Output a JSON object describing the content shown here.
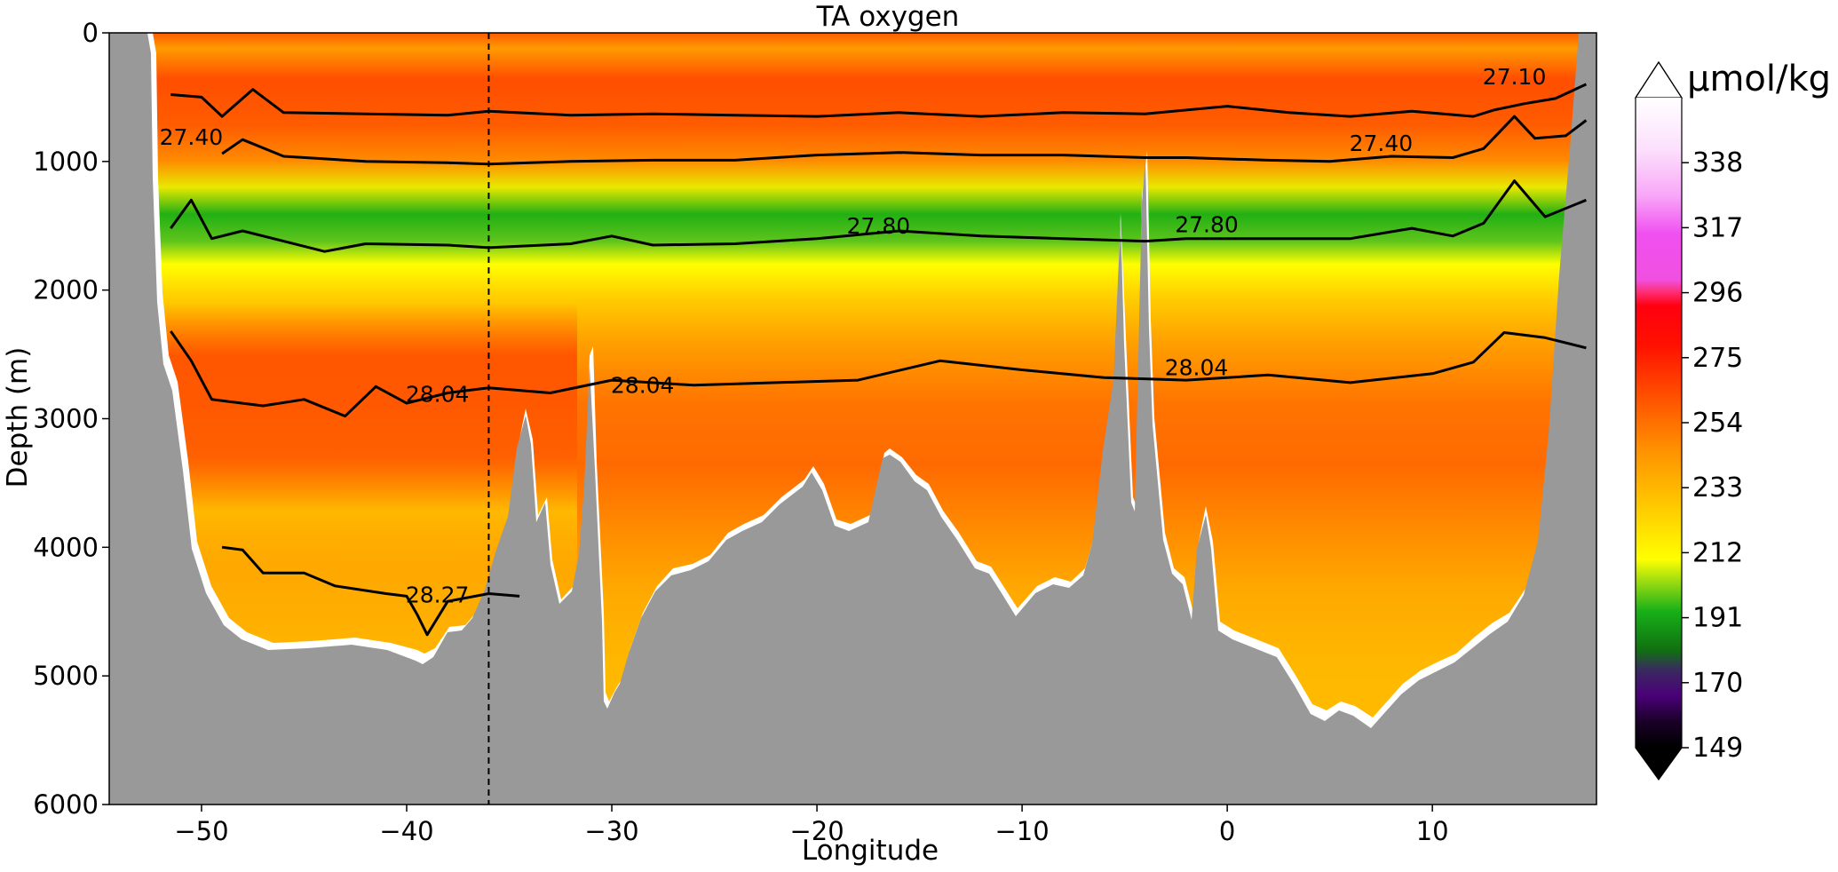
{
  "chart_data": {
    "type": "contour-section",
    "title": "TA oxygen",
    "xlabel": "Longitude",
    "ylabel": "Depth (m)",
    "xlim": [
      -54.5,
      18
    ],
    "ylim": [
      6000,
      0
    ],
    "x_ticks": [
      -50,
      -40,
      -30,
      -20,
      -10,
      0,
      10
    ],
    "x_tick_labels": [
      "−50",
      "−40",
      "−30",
      "−20",
      "−10",
      "0",
      "10"
    ],
    "y_ticks": [
      0,
      1000,
      2000,
      3000,
      4000,
      5000,
      6000
    ],
    "y_tick_labels": [
      "0",
      "1000",
      "2000",
      "3000",
      "4000",
      "5000",
      "6000"
    ],
    "reference_line_longitude": -36,
    "colorbar": {
      "unit": "µmol/kg",
      "ticks": [
        149,
        170,
        191,
        212,
        233,
        254,
        275,
        296,
        317,
        338
      ],
      "tick_labels": [
        "149",
        "170",
        "191",
        "212",
        "233",
        "254",
        "275",
        "296",
        "317",
        "338"
      ],
      "extend": "both"
    },
    "isopycnals": [
      {
        "label": "27.10",
        "label_lon": 14,
        "label_depth": 400,
        "points": [
          [
            -51.5,
            480
          ],
          [
            -50,
            500
          ],
          [
            -49,
            650
          ],
          [
            -47.5,
            440
          ],
          [
            -46,
            620
          ],
          [
            -42,
            630
          ],
          [
            -38,
            640
          ],
          [
            -36,
            610
          ],
          [
            -32,
            640
          ],
          [
            -28,
            630
          ],
          [
            -24,
            640
          ],
          [
            -20,
            650
          ],
          [
            -16,
            620
          ],
          [
            -12,
            650
          ],
          [
            -8,
            620
          ],
          [
            -4,
            630
          ],
          [
            0,
            570
          ],
          [
            3,
            620
          ],
          [
            6,
            650
          ],
          [
            9,
            610
          ],
          [
            12,
            650
          ],
          [
            13,
            600
          ],
          [
            14.5,
            550
          ],
          [
            16,
            510
          ],
          [
            17.5,
            400
          ]
        ]
      },
      {
        "label": "27.40",
        "label_lon": -50.5,
        "label_depth": 870,
        "points": [
          [
            -49,
            940
          ],
          [
            -48,
            830
          ],
          [
            -46,
            960
          ],
          [
            -42,
            1000
          ],
          [
            -38,
            1010
          ],
          [
            -36,
            1020
          ],
          [
            -32,
            1000
          ],
          [
            -28,
            990
          ],
          [
            -24,
            990
          ],
          [
            -20,
            950
          ],
          [
            -16,
            930
          ],
          [
            -12,
            950
          ],
          [
            -8,
            950
          ],
          [
            -4,
            970
          ],
          [
            -2,
            970
          ],
          [
            2,
            990
          ],
          [
            5,
            1000
          ],
          [
            8,
            960
          ],
          [
            11,
            970
          ],
          [
            12.5,
            900
          ],
          [
            14,
            650
          ],
          [
            15,
            820
          ],
          [
            16.5,
            800
          ],
          [
            17.5,
            680
          ]
        ]
      },
      {
        "label": "27.40",
        "label_lon": 7.5,
        "label_depth": 920,
        "points": []
      },
      {
        "label": "27.80",
        "label_lon": -17,
        "label_depth": 1560,
        "points": [
          [
            -51.5,
            1520
          ],
          [
            -50.5,
            1300
          ],
          [
            -49.5,
            1600
          ],
          [
            -48,
            1540
          ],
          [
            -46,
            1620
          ],
          [
            -44,
            1700
          ],
          [
            -42,
            1640
          ],
          [
            -38,
            1650
          ],
          [
            -36,
            1670
          ],
          [
            -32,
            1640
          ],
          [
            -30,
            1580
          ],
          [
            -28,
            1650
          ],
          [
            -24,
            1640
          ],
          [
            -20,
            1600
          ],
          [
            -16,
            1540
          ],
          [
            -12,
            1580
          ],
          [
            -8,
            1600
          ],
          [
            -4,
            1620
          ],
          [
            -2,
            1600
          ],
          [
            2,
            1600
          ],
          [
            6,
            1600
          ],
          [
            9,
            1520
          ],
          [
            11,
            1580
          ],
          [
            12.5,
            1480
          ],
          [
            14,
            1150
          ],
          [
            15.5,
            1430
          ],
          [
            17.5,
            1300
          ]
        ]
      },
      {
        "label": "27.80",
        "label_lon": -1,
        "label_depth": 1550,
        "points": []
      },
      {
        "label": "28.04",
        "label_lon": -38.5,
        "label_depth": 2870,
        "points": [
          [
            -51.5,
            2320
          ],
          [
            -50.5,
            2550
          ],
          [
            -49.5,
            2850
          ],
          [
            -47,
            2900
          ],
          [
            -45,
            2850
          ],
          [
            -43,
            2980
          ],
          [
            -41.5,
            2750
          ],
          [
            -40,
            2880
          ],
          [
            -38,
            2800
          ],
          [
            -36,
            2760
          ],
          [
            -33,
            2800
          ],
          [
            -30,
            2700
          ],
          [
            -26,
            2740
          ],
          [
            -22,
            2720
          ],
          [
            -18,
            2700
          ],
          [
            -14,
            2550
          ],
          [
            -10,
            2620
          ],
          [
            -6,
            2680
          ],
          [
            -2,
            2700
          ],
          [
            2,
            2660
          ],
          [
            6,
            2720
          ],
          [
            10,
            2650
          ],
          [
            12,
            2560
          ],
          [
            13.5,
            2330
          ],
          [
            15.5,
            2370
          ],
          [
            17.5,
            2450
          ]
        ]
      },
      {
        "label": "28.04",
        "label_lon": -28.5,
        "label_depth": 2800,
        "points": []
      },
      {
        "label": "28.04",
        "label_lon": -1.5,
        "label_depth": 2660,
        "points": []
      },
      {
        "label": "28.27",
        "label_lon": -38.5,
        "label_depth": 4430,
        "points": [
          [
            -49,
            4000
          ],
          [
            -48,
            4020
          ],
          [
            -47,
            4200
          ],
          [
            -45,
            4200
          ],
          [
            -43.5,
            4300
          ],
          [
            -41,
            4360
          ],
          [
            -40,
            4380
          ],
          [
            -39.5,
            4520
          ],
          [
            -39,
            4680
          ],
          [
            -38,
            4420
          ],
          [
            -36,
            4360
          ],
          [
            -34.5,
            4380
          ]
        ]
      }
    ]
  }
}
